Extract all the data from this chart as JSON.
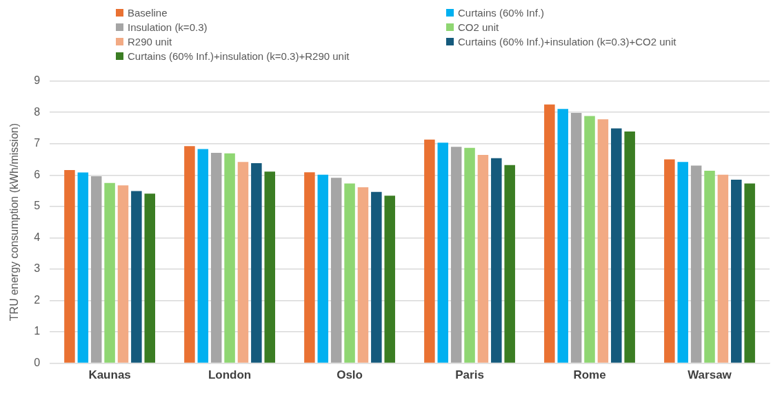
{
  "chart_data": {
    "type": "bar",
    "ylabel": "TRU energy consumption (kWh/mission)",
    "categories": [
      "Kaunas",
      "London",
      "Oslo",
      "Paris",
      "Rome",
      "Warsaw"
    ],
    "series": [
      {
        "name": "Baseline",
        "color": "#e97132",
        "values": [
          6.16,
          6.92,
          6.09,
          7.13,
          8.25,
          6.5
        ]
      },
      {
        "name": "Curtains (60% Inf.)",
        "color": "#00b0f0",
        "values": [
          6.08,
          6.83,
          6.01,
          7.03,
          8.11,
          6.42
        ]
      },
      {
        "name": "Insulation (k=0.3)",
        "color": "#a5a5a5",
        "values": [
          5.96,
          6.71,
          5.91,
          6.9,
          7.98,
          6.3
        ]
      },
      {
        "name": "CO2 unit",
        "color": "#8fd672",
        "values": [
          5.75,
          6.69,
          5.73,
          6.87,
          7.88,
          6.14
        ]
      },
      {
        "name": "R290 unit",
        "color": "#f2aa84",
        "values": [
          5.67,
          6.42,
          5.61,
          6.64,
          7.78,
          6.01
        ]
      },
      {
        "name": "Curtains (60% Inf.)+insulation (k=0.3)+CO2 unit",
        "color": "#155a7c",
        "values": [
          5.49,
          6.38,
          5.46,
          6.54,
          7.49,
          5.85
        ]
      },
      {
        "name": "Curtains (60% Inf.)+insulation (k=0.3)+R290 unit",
        "color": "#3b7d23",
        "values": [
          5.41,
          6.11,
          5.34,
          6.32,
          7.39,
          5.73
        ]
      }
    ],
    "ylim": [
      0,
      9
    ],
    "yticks": [
      0,
      1,
      2,
      3,
      4,
      5,
      6,
      7,
      8,
      9
    ],
    "grid": "y",
    "legend": "top"
  }
}
